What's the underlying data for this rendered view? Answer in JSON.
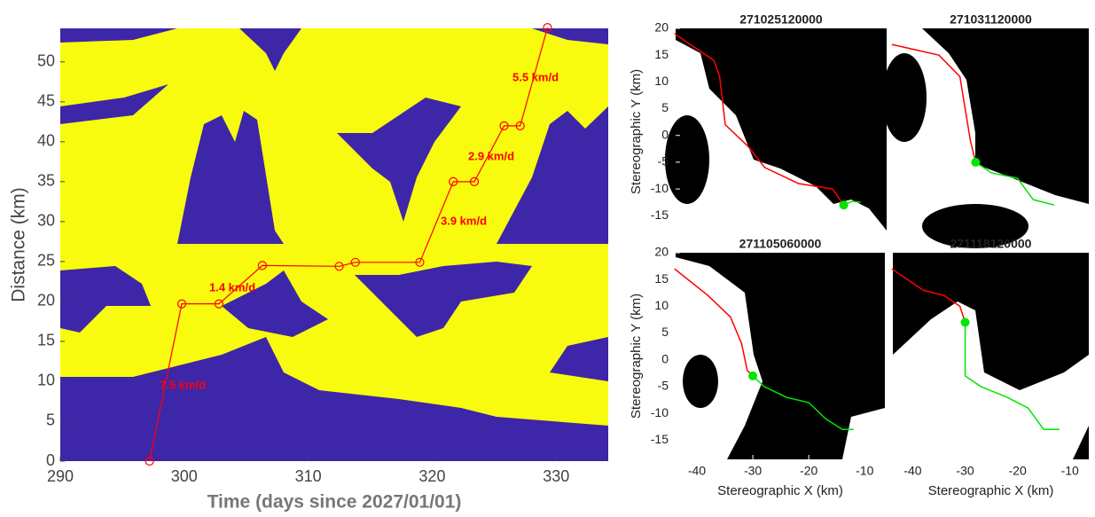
{
  "chart_data": [
    {
      "type": "line",
      "xlabel": "Time (days since 2027/01/01)",
      "ylabel": "Distance (km)",
      "xlim": [
        290,
        334.2
      ],
      "ylim": [
        0,
        54.2
      ],
      "xticks": [
        290,
        300,
        310,
        320,
        330
      ],
      "yticks": [
        0,
        5,
        10,
        15,
        20,
        25,
        30,
        35,
        40,
        45,
        50
      ],
      "series": [
        {
          "color": "#ff0000",
          "marker": "o",
          "x": [
            297.2,
            299.8,
            302.8,
            306.3,
            312.5,
            313.8,
            319,
            321.7,
            323.4,
            325.8,
            327.1,
            329.3
          ],
          "values": [
            0,
            19.7,
            19.7,
            24.5,
            24.4,
            24.9,
            24.9,
            35,
            35,
            42,
            42,
            54.3
          ]
        }
      ],
      "annotations": [
        "7.5 km/d",
        "1.4 km/d",
        "3.9 km/d",
        "2.9 km/d",
        "5.5 km/d"
      ]
    },
    {
      "type": "line",
      "title": "271025120000",
      "ylabel": "Stereographic Y (km)",
      "xlim": [
        -43.8,
        -6.4
      ],
      "ylim": [
        -18.6,
        20
      ],
      "yticks": [
        -15,
        -10,
        -5,
        0,
        5,
        10,
        15,
        20
      ],
      "series": [
        {
          "color": "#ff0000",
          "x": [
            -44,
            -37,
            -36,
            -35,
            -31,
            -28,
            -22,
            -16,
            -14
          ],
          "values": [
            19,
            14,
            11,
            2,
            -2,
            -6,
            -9,
            -10,
            -13
          ]
        },
        {
          "color": "#00e600",
          "x": [
            -14,
            -12.5,
            -11
          ],
          "values": [
            -13,
            -12.3,
            -12.5
          ]
        }
      ],
      "marker": {
        "color": "#00e600",
        "x": -14,
        "y": -13
      }
    },
    {
      "type": "line",
      "title": "271031120000",
      "xlim": [
        -43.8,
        -6.4
      ],
      "ylim": [
        -18.6,
        20
      ],
      "series": [
        {
          "color": "#ff0000",
          "x": [
            -44,
            -35,
            -31,
            -30,
            -29,
            -28
          ],
          "values": [
            17,
            15,
            11,
            5,
            -1,
            -5
          ]
        },
        {
          "color": "#00e600",
          "x": [
            -28,
            -25,
            -20,
            -17,
            -13
          ],
          "values": [
            -5,
            -7,
            -8,
            -12,
            -13
          ]
        }
      ],
      "marker": {
        "color": "#00e600",
        "x": -28,
        "y": -5
      }
    },
    {
      "type": "line",
      "title": "271105060000",
      "xlabel": "Stereographic X (km)",
      "ylabel": "Stereographic Y (km)",
      "xlim": [
        -43.8,
        -6.4
      ],
      "ylim": [
        -18.6,
        20
      ],
      "xticks": [
        -40,
        -30,
        -20,
        -10
      ],
      "yticks": [
        -15,
        -10,
        -5,
        0,
        5,
        10,
        15,
        20
      ],
      "series": [
        {
          "color": "#ff0000",
          "x": [
            -44,
            -38,
            -34,
            -32,
            -31,
            -30
          ],
          "values": [
            17,
            12,
            8,
            3,
            -2,
            -3
          ]
        },
        {
          "color": "#00e600",
          "x": [
            -30,
            -28,
            -24,
            -20,
            -17,
            -14,
            -12
          ],
          "values": [
            -3,
            -5,
            -7,
            -8,
            -11,
            -13,
            -13
          ]
        }
      ],
      "marker": {
        "color": "#00e600",
        "x": -30,
        "y": -3
      }
    },
    {
      "type": "line",
      "title": "271118120000",
      "xlabel": "Stereographic X (km)",
      "xlim": [
        -43.8,
        -6.4
      ],
      "ylim": [
        -18.6,
        20
      ],
      "xticks": [
        -40,
        -30,
        -20,
        -10
      ],
      "series": [
        {
          "color": "#ff0000",
          "x": [
            -44,
            -38,
            -34,
            -31,
            -30
          ],
          "values": [
            17,
            13,
            12,
            10,
            7
          ]
        },
        {
          "color": "#00e600",
          "x": [
            -30,
            -30,
            -27,
            -22,
            -18,
            -15,
            -12
          ],
          "values": [
            7,
            -3,
            -5,
            -7,
            -9,
            -13,
            -13
          ]
        }
      ],
      "marker": {
        "color": "#00e600",
        "x": -30,
        "y": 7
      }
    }
  ]
}
